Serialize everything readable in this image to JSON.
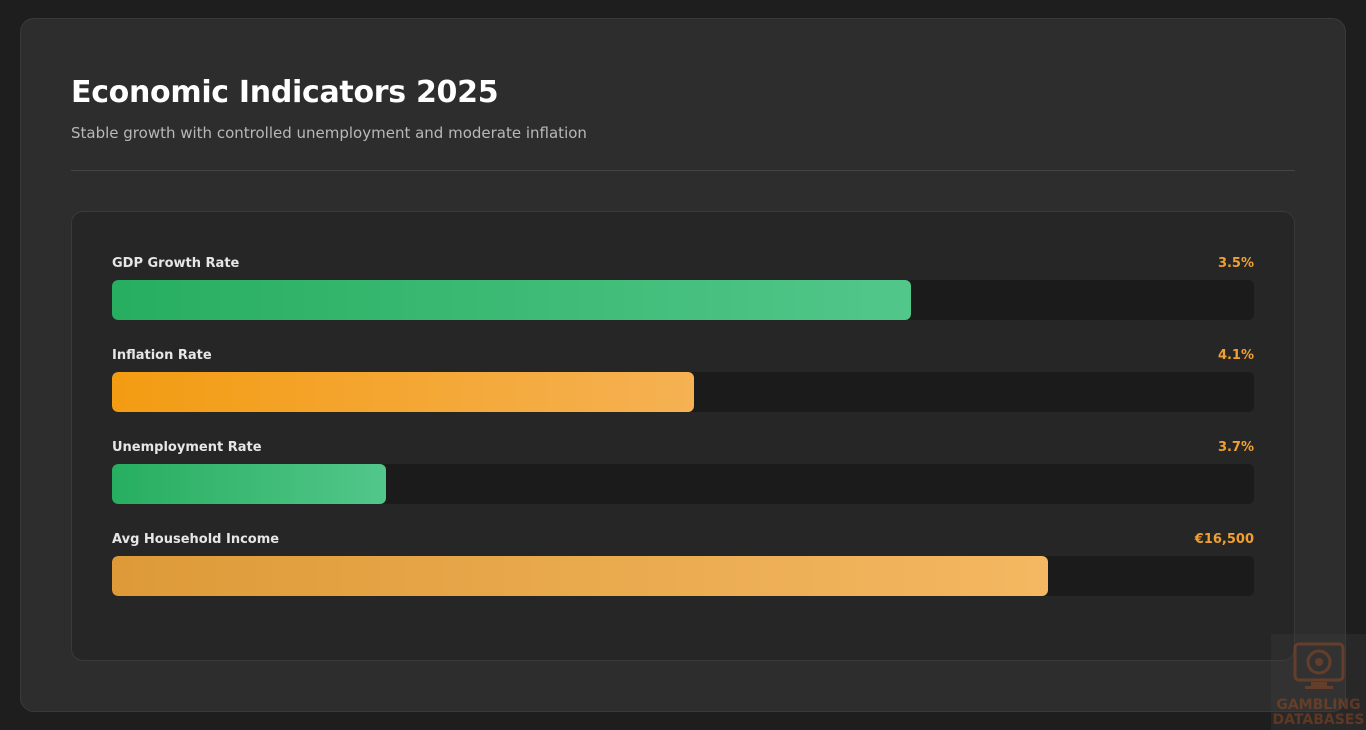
{
  "header": {
    "title": "Economic Indicators 2025",
    "subtitle": "Stable growth with controlled unemployment and moderate inflation"
  },
  "indicators": [
    {
      "label": "GDP Growth Rate",
      "value": "3.5%",
      "fill_percent": 70,
      "color": "green"
    },
    {
      "label": "Inflation Rate",
      "value": "4.1%",
      "fill_percent": 51,
      "color": "orange"
    },
    {
      "label": "Unemployment Rate",
      "value": "3.7%",
      "fill_percent": 24,
      "color": "green"
    },
    {
      "label": "Avg Household Income",
      "value": "€16,500",
      "fill_percent": 82,
      "color": "gold"
    }
  ],
  "colors": {
    "green_start": "#27ae60",
    "green_end": "#52c78a",
    "orange_start": "#f39c12",
    "orange_end": "#f5b153",
    "gold_start": "#de9a38",
    "gold_end": "#f4b862",
    "value_text": "#f0a030"
  },
  "watermark": {
    "line1": "GAMBLING",
    "line2": "DATABASES"
  }
}
